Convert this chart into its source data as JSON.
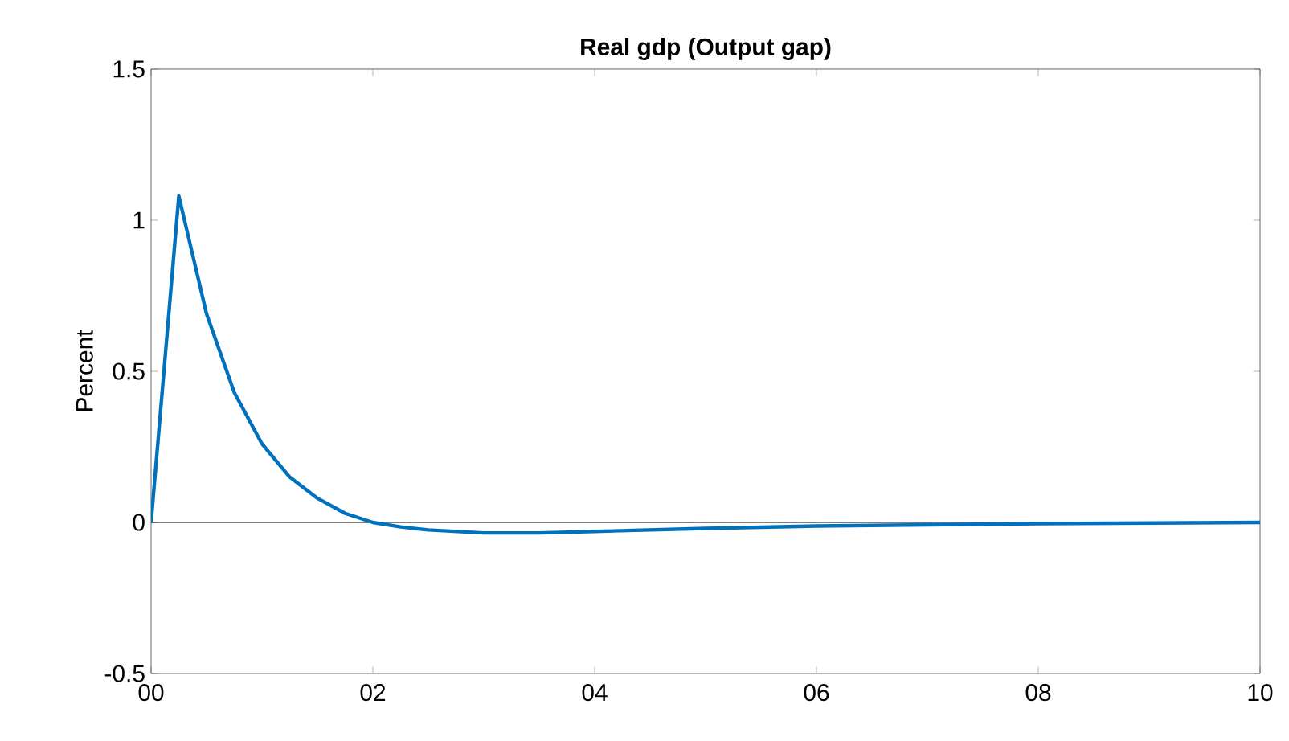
{
  "chart_data": {
    "type": "line",
    "title": "Real gdp (Output gap)",
    "ylabel": "Percent",
    "x": [
      0,
      0.25,
      0.5,
      0.75,
      1.0,
      1.25,
      1.5,
      1.75,
      2.0,
      2.25,
      2.5,
      3.0,
      3.5,
      4.0,
      5.0,
      6.0,
      7.0,
      8.0,
      9.0,
      10.0
    ],
    "series": [
      {
        "color": "#0072bd",
        "values": [
          0,
          1.08,
          0.69,
          0.43,
          0.26,
          0.15,
          0.08,
          0.03,
          0.0,
          -0.015,
          -0.025,
          -0.035,
          -0.035,
          -0.03,
          -0.02,
          -0.012,
          -0.008,
          -0.004,
          -0.002,
          0
        ]
      }
    ],
    "xlim": [
      0,
      10
    ],
    "ylim": [
      -0.5,
      1.5
    ],
    "xticks": [
      {
        "value": 0,
        "label": "00"
      },
      {
        "value": 2,
        "label": "02"
      },
      {
        "value": 4,
        "label": "04"
      },
      {
        "value": 6,
        "label": "06"
      },
      {
        "value": 8,
        "label": "08"
      },
      {
        "value": 10,
        "label": "10"
      }
    ],
    "yticks": [
      -0.5,
      0,
      0.5,
      1,
      1.5
    ],
    "ref_lines": [
      {
        "axis": "y",
        "value": 0,
        "color": "#000000"
      }
    ],
    "grid": false,
    "marker": "none",
    "line_style": "solid"
  }
}
